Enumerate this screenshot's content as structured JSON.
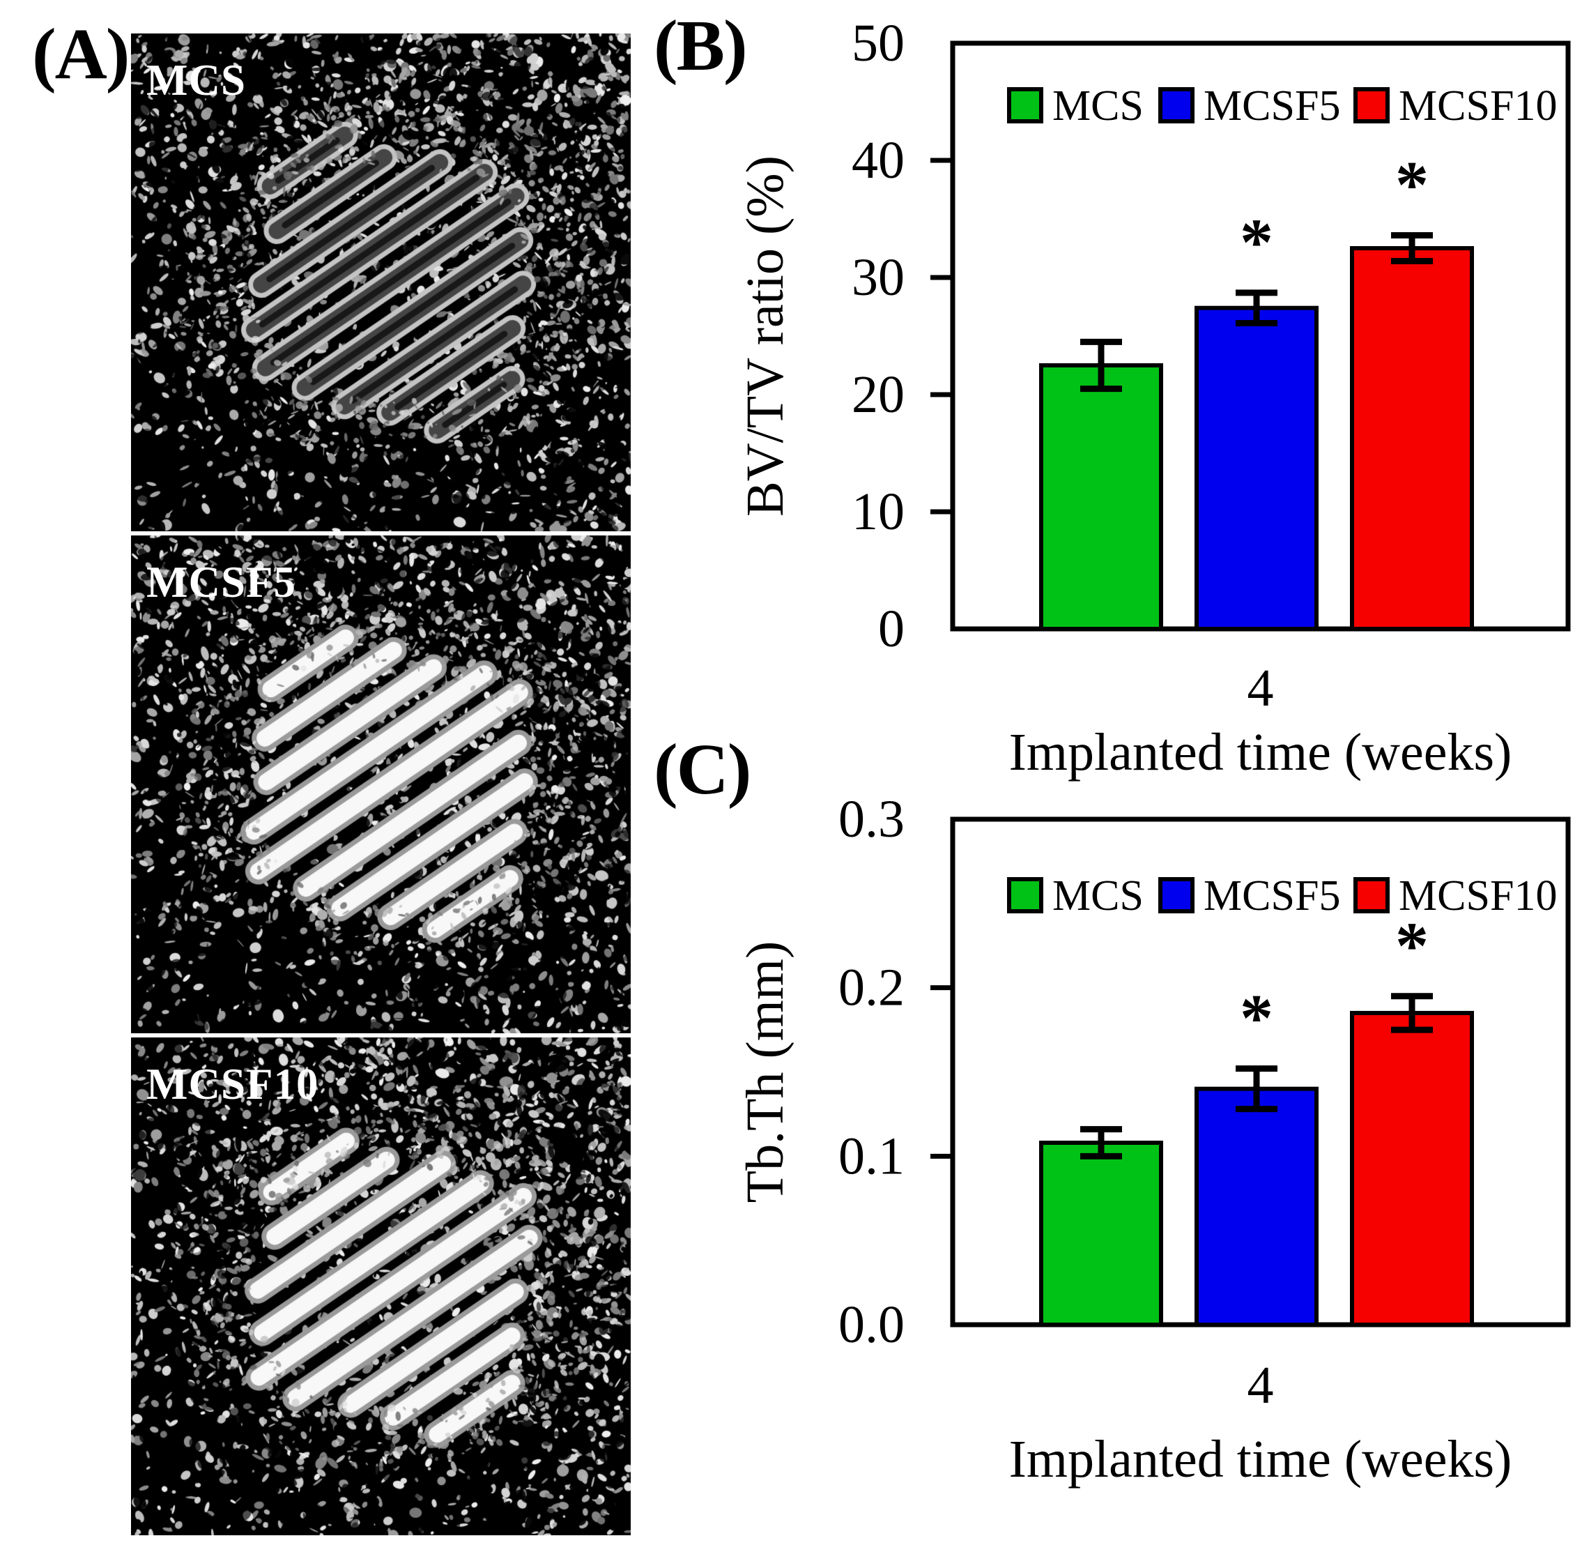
{
  "figure": {
    "panel_a": {
      "label": "(A)",
      "images": [
        {
          "label": "MCS"
        },
        {
          "label": "MCSF5"
        },
        {
          "label": "MCSF10"
        }
      ]
    },
    "panel_b": {
      "label": "(B)"
    },
    "panel_c": {
      "label": "(C)"
    }
  },
  "colors": {
    "mcs_green": "#00c216",
    "mcsf5_blue": "#0000ee",
    "mcsf10_red": "#f60000",
    "axis_black": "#000000",
    "photo_background": "#000000",
    "photo_label_white": "#ffffff"
  },
  "chart_data": [
    {
      "id": "bvtv_ratio",
      "panel": "B",
      "type": "bar",
      "title": "",
      "categories": [
        "MCS",
        "MCSF5",
        "MCSF10"
      ],
      "values": [
        22.5,
        27.4,
        32.5
      ],
      "error_bars": [
        2.0,
        1.3,
        1.1
      ],
      "significance": [
        "",
        "*",
        "*"
      ],
      "bar_colors": [
        "#00c216",
        "#0000ee",
        "#f60000"
      ],
      "x_tick_label": "4",
      "xlabel": "Implanted time (weeks)",
      "ylabel": "BV/TV ratio (%)",
      "ylim": [
        0,
        50
      ],
      "yticks": [
        0,
        10,
        20,
        30,
        40,
        50
      ],
      "ytick_labels": [
        "0",
        "10",
        "20",
        "30",
        "40",
        "50"
      ],
      "legend": [
        {
          "label": "MCS",
          "color": "#00c216"
        },
        {
          "label": "MCSF5",
          "color": "#0000ee"
        },
        {
          "label": "MCSF10",
          "color": "#f60000"
        }
      ],
      "legend_position": "inside-top",
      "grid": false
    },
    {
      "id": "tb_th",
      "panel": "C",
      "type": "bar",
      "title": "",
      "categories": [
        "MCS",
        "MCSF5",
        "MCSF10"
      ],
      "values": [
        0.108,
        0.14,
        0.185
      ],
      "error_bars": [
        0.008,
        0.012,
        0.01
      ],
      "significance": [
        "",
        "*",
        "*"
      ],
      "bar_colors": [
        "#00c216",
        "#0000ee",
        "#f60000"
      ],
      "x_tick_label": "4",
      "xlabel": "Implanted time (weeks)",
      "ylabel": "Tb.Th (mm)",
      "ylim": [
        0,
        0.3
      ],
      "yticks": [
        0,
        0.1,
        0.2,
        0.3
      ],
      "ytick_labels": [
        "0.0",
        "0.1",
        "0.2",
        "0.3"
      ],
      "legend": [
        {
          "label": "MCS",
          "color": "#00c216"
        },
        {
          "label": "MCSF5",
          "color": "#0000ee"
        },
        {
          "label": "MCSF10",
          "color": "#f60000"
        }
      ],
      "legend_position": "inside-top",
      "grid": false
    }
  ]
}
